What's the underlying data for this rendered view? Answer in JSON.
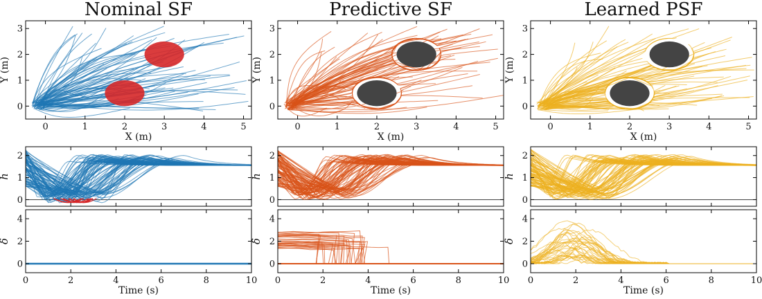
{
  "chart_data": [
    {
      "type": "line",
      "title": "Nominal SF",
      "color": "#1f77b4",
      "violation_color": "#d62728",
      "top": {
        "xlabel": "X (m)",
        "ylabel": "Y (m)",
        "xlim": [
          -0.5,
          5.2
        ],
        "ylim": [
          -0.5,
          3.3
        ],
        "xticks": [
          0,
          1,
          2,
          3,
          4,
          5
        ],
        "yticks": [
          0,
          1,
          2,
          3
        ],
        "obstacles": [
          {
            "cx": 2.0,
            "cy": 0.5,
            "rx": 0.5,
            "ry": 0.5,
            "fill": "#d62728"
          },
          {
            "cx": 3.0,
            "cy": 2.0,
            "rx": 0.5,
            "ry": 0.5,
            "fill": "#d62728"
          }
        ]
      },
      "mid": {
        "xlabel": "",
        "ylabel": "h",
        "xlim": [
          0,
          10
        ],
        "ylim": [
          -0.3,
          2.4
        ],
        "yticks": [
          0,
          1,
          2
        ],
        "min_h": -0.15,
        "steady_h": 1.55
      },
      "bot": {
        "xlabel": "Time (s)",
        "ylabel": "δ",
        "xlim": [
          0,
          10
        ],
        "ylim": [
          -0.8,
          4.8
        ],
        "xticks": [
          0,
          2,
          4,
          6,
          8,
          10
        ],
        "yticks": [
          0,
          2,
          4
        ],
        "delta_profile": "zero"
      }
    },
    {
      "type": "line",
      "title": "Predictive SF",
      "color": "#d95319",
      "violation_color": "#d95319",
      "top": {
        "xlabel": "X (m)",
        "ylabel": "Y (m)",
        "xlim": [
          -0.5,
          5.2
        ],
        "ylim": [
          -0.5,
          3.3
        ],
        "xticks": [
          0,
          1,
          2,
          3,
          4,
          5
        ],
        "yticks": [
          0,
          1,
          2,
          3
        ],
        "obstacles": [
          {
            "cx": 2.0,
            "cy": 0.5,
            "rx": 0.5,
            "ry": 0.5,
            "fill": "#444444"
          },
          {
            "cx": 3.0,
            "cy": 2.0,
            "rx": 0.5,
            "ry": 0.5,
            "fill": "#444444"
          }
        ]
      },
      "mid": {
        "xlabel": "",
        "ylabel": "h",
        "xlim": [
          0,
          10
        ],
        "ylim": [
          -0.3,
          2.4
        ],
        "yticks": [
          0,
          1,
          2
        ],
        "min_h": 0.0,
        "steady_h": 1.55
      },
      "bot": {
        "xlabel": "Time (s)",
        "ylabel": "δ",
        "xlim": [
          0,
          10
        ],
        "ylim": [
          -0.8,
          4.8
        ],
        "xticks": [
          0,
          2,
          4,
          6,
          8,
          10
        ],
        "yticks": [
          0,
          2,
          4
        ],
        "delta_profile": "step"
      }
    },
    {
      "type": "line",
      "title": "Learned PSF",
      "color": "#edb120",
      "violation_color": "#edb120",
      "top": {
        "xlabel": "X (m)",
        "ylabel": "Y (m)",
        "xlim": [
          -0.5,
          5.2
        ],
        "ylim": [
          -0.5,
          3.3
        ],
        "xticks": [
          0,
          1,
          2,
          3,
          4,
          5
        ],
        "yticks": [
          0,
          1,
          2,
          3
        ],
        "obstacles": [
          {
            "cx": 2.0,
            "cy": 0.5,
            "rx": 0.5,
            "ry": 0.5,
            "fill": "#444444"
          },
          {
            "cx": 3.0,
            "cy": 2.0,
            "rx": 0.5,
            "ry": 0.5,
            "fill": "#444444"
          }
        ]
      },
      "mid": {
        "xlabel": "",
        "ylabel": "h",
        "xlim": [
          0,
          10
        ],
        "ylim": [
          -0.3,
          2.4
        ],
        "yticks": [
          0,
          1,
          2
        ],
        "min_h": 0.0,
        "steady_h": 1.55
      },
      "bot": {
        "xlabel": "Time (s)",
        "ylabel": "δ",
        "xlim": [
          0,
          10
        ],
        "ylim": [
          -0.8,
          4.8
        ],
        "xticks": [
          0,
          2,
          4,
          6,
          8,
          10
        ],
        "yticks": [
          0,
          2,
          4
        ],
        "delta_profile": "bump"
      }
    }
  ]
}
